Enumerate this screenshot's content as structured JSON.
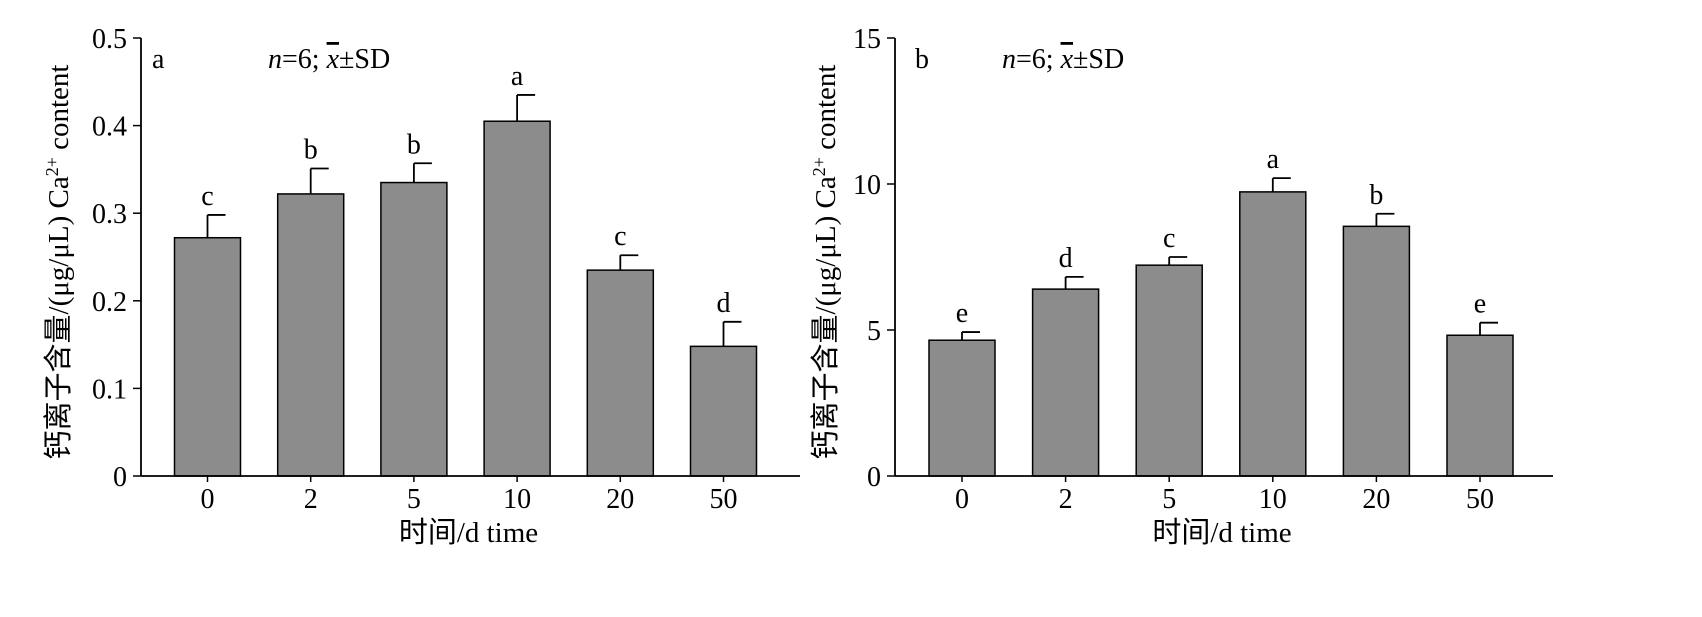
{
  "chart_data": [
    {
      "type": "bar",
      "panel_label": "a",
      "annotation": {
        "n": "n",
        "eq": "=6; ",
        "xbar": "x",
        "rest": "±SD"
      },
      "ylabel_parts": {
        "cn": "钙离子含量/(μg/μL) Ca",
        "sup": "2+",
        "tail": " content"
      },
      "xlabel": "时间/d time",
      "categories": [
        "0",
        "2",
        "5",
        "10",
        "20",
        "50"
      ],
      "values": [
        0.272,
        0.322,
        0.335,
        0.405,
        0.235,
        0.148
      ],
      "errors": [
        0.026,
        0.029,
        0.022,
        0.03,
        0.017,
        0.028
      ],
      "sig_letters": [
        "c",
        "b",
        "b",
        "a",
        "c",
        "d"
      ],
      "ylim": [
        0,
        0.5
      ],
      "yticks": [
        0,
        0.1,
        0.2,
        0.3,
        0.4,
        0.5
      ],
      "ytick_labels": [
        "0",
        "0.1",
        "0.2",
        "0.3",
        "0.4",
        "0.5"
      ],
      "bar_color": "#8c8c8c"
    },
    {
      "type": "bar",
      "panel_label": "b",
      "annotation": {
        "n": "n",
        "eq": "=6; ",
        "xbar": "x",
        "rest": "±SD"
      },
      "ylabel_parts": {
        "cn": "钙离子含量/(μg/μL) Ca",
        "sup": "2+",
        "tail": " content"
      },
      "xlabel": "时间/d time",
      "categories": [
        "0",
        "2",
        "5",
        "10",
        "20",
        "50"
      ],
      "values": [
        4.65,
        6.4,
        7.22,
        9.73,
        8.55,
        4.82
      ],
      "errors": [
        0.28,
        0.42,
        0.28,
        0.47,
        0.43,
        0.43
      ],
      "sig_letters": [
        "e",
        "d",
        "c",
        "a",
        "b",
        "e"
      ],
      "ylim": [
        0,
        15
      ],
      "yticks": [
        0,
        5,
        10,
        15
      ],
      "ytick_labels": [
        "0",
        "5",
        "10",
        "15"
      ],
      "bar_color": "#8c8c8c"
    }
  ]
}
